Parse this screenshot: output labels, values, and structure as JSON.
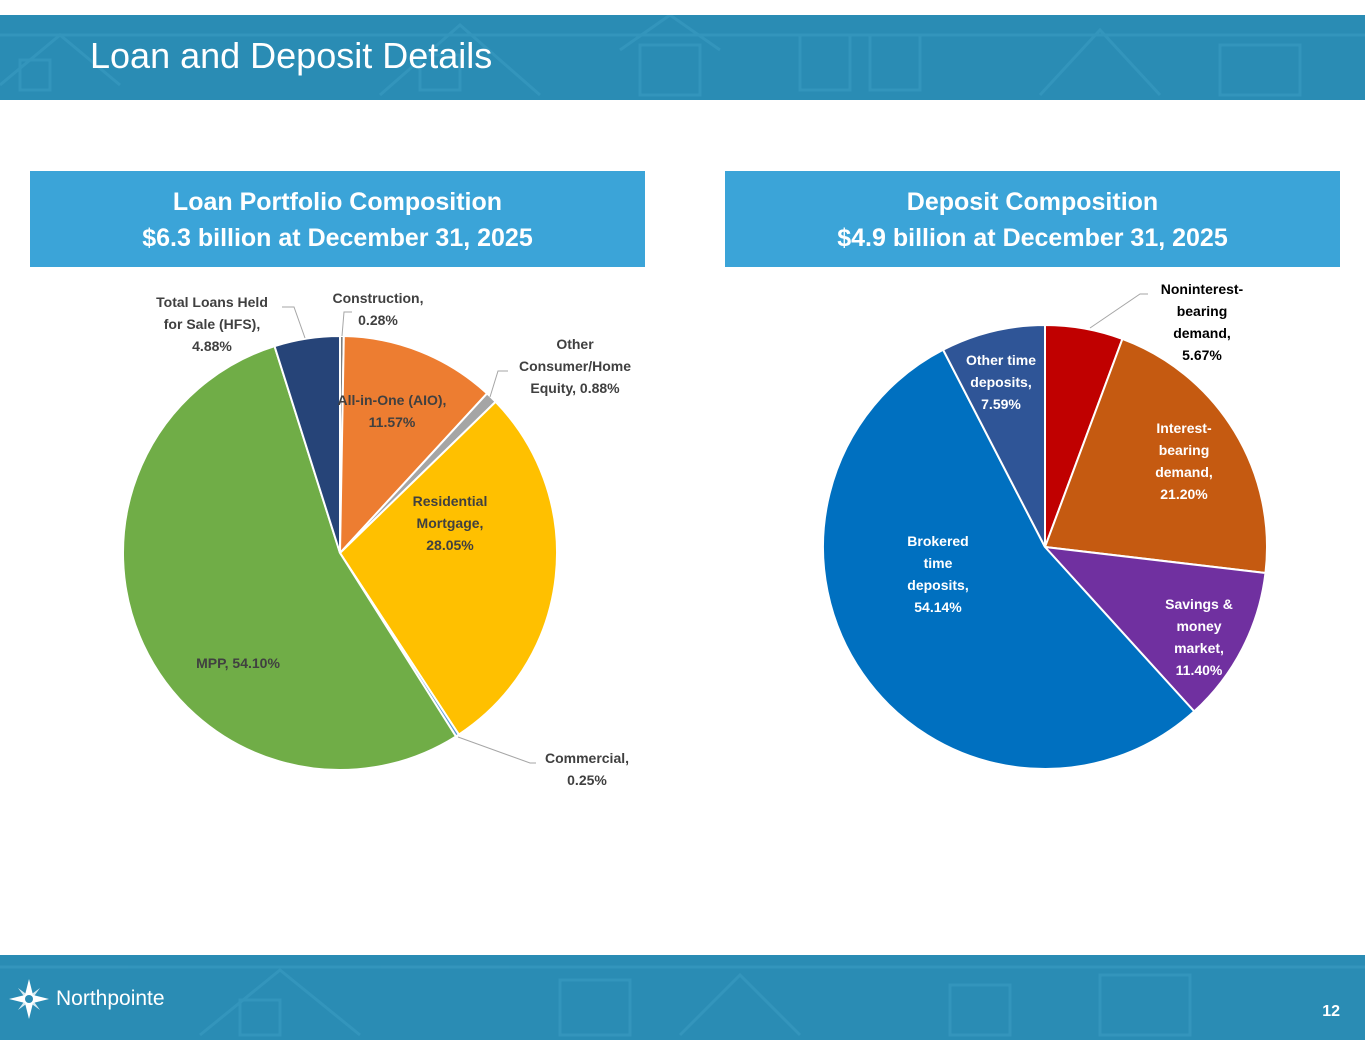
{
  "slide": {
    "title": "Loan and Deposit Details",
    "page_number": "12"
  },
  "loan_panel": {
    "title_line1": "Loan Portfolio Composition",
    "title_line2": "$6.3 billion at December 31, 2025"
  },
  "deposit_panel": {
    "title_line1": "Deposit Composition",
    "title_line2": "$4.9 billion at December 31, 2025"
  },
  "footer": {
    "logo_text": "Northpointe"
  },
  "colors": {
    "band": "#2a8cb4",
    "panel_header": "#3ba4d8"
  },
  "chart_data": [
    {
      "type": "pie",
      "title": "Loan Portfolio Composition",
      "slices": [
        {
          "label": "Construction, 0.28%",
          "value": 0.28,
          "color": "#7f7f7f"
        },
        {
          "label": "All-in-One (AIO), 11.57%",
          "value": 11.57,
          "color": "#ed7d31"
        },
        {
          "label": "Other Consumer/Home Equity, 0.88%",
          "value": 0.88,
          "color": "#a5a5a5"
        },
        {
          "label": "Residential Mortgage, 28.05%",
          "value": 28.05,
          "color": "#ffc000"
        },
        {
          "label": "Commercial, 0.25%",
          "value": 0.25,
          "color": "#5b9bd5"
        },
        {
          "label": "MPP, 54.10%",
          "value": 54.1,
          "color": "#70ad47"
        },
        {
          "label": "Total Loans Held for Sale (HFS), 4.88%",
          "value": 4.88,
          "color": "#264478"
        }
      ]
    },
    {
      "type": "pie",
      "title": "Deposit Composition",
      "slices": [
        {
          "label": "Noninterest-bearing demand, 5.67%",
          "value": 5.67,
          "color": "#c00000"
        },
        {
          "label": "Interest-bearing demand, 21.20%",
          "value": 21.2,
          "color": "#c55a11"
        },
        {
          "label": "Savings & money market, 11.40%",
          "value": 11.4,
          "color": "#7030a0"
        },
        {
          "label": "Brokered time deposits, 54.14%",
          "value": 54.14,
          "color": "#0070c0"
        },
        {
          "label": "Other time deposits, 7.59%",
          "value": 7.59,
          "color": "#2f5597"
        }
      ]
    }
  ]
}
